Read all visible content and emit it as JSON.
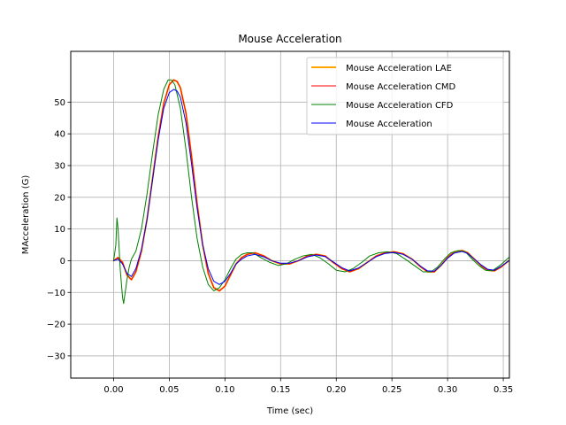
{
  "chart_data": {
    "type": "line",
    "title": "Mouse Acceleration",
    "xlabel": "Time (sec)",
    "ylabel": "MAcceleration (G)",
    "xlim": [
      -0.0385,
      0.3555
    ],
    "ylim": [
      -37,
      66
    ],
    "xticks": [
      0.0,
      0.05,
      0.1,
      0.15,
      0.2,
      0.25,
      0.3,
      0.35
    ],
    "xtick_labels": [
      "0.00",
      "0.05",
      "0.10",
      "0.15",
      "0.20",
      "0.25",
      "0.30",
      "0.35"
    ],
    "yticks": [
      -30,
      -20,
      -10,
      0,
      10,
      20,
      30,
      40,
      50
    ],
    "ytick_labels": [
      "−30",
      "−20",
      "−10",
      "0",
      "10",
      "20",
      "30",
      "40",
      "50"
    ],
    "grid": true,
    "legend_position": "top-right",
    "series": [
      {
        "name": "Mouse Acceleration LAE",
        "color": "#ffa500",
        "width": 2,
        "x": [
          0.0,
          0.004,
          0.008,
          0.012,
          0.016,
          0.02,
          0.025,
          0.03,
          0.035,
          0.04,
          0.045,
          0.05,
          0.054,
          0.057,
          0.06,
          0.065,
          0.07,
          0.075,
          0.08,
          0.085,
          0.09,
          0.095,
          0.1,
          0.105,
          0.11,
          0.115,
          0.12,
          0.127,
          0.135,
          0.142,
          0.15,
          0.158,
          0.166,
          0.174,
          0.182,
          0.19,
          0.197,
          0.205,
          0.212,
          0.22,
          0.228,
          0.236,
          0.244,
          0.252,
          0.26,
          0.268,
          0.276,
          0.282,
          0.288,
          0.294,
          0.3,
          0.306,
          0.313,
          0.318,
          0.324,
          0.33,
          0.336,
          0.342,
          0.348,
          0.355
        ],
        "y": [
          0.0,
          1.0,
          -0.5,
          -4.5,
          -6.0,
          -3.5,
          3.0,
          13.0,
          26.0,
          39.0,
          49.5,
          55.5,
          57.0,
          56.5,
          54.5,
          46.5,
          33.0,
          18.0,
          5.0,
          -4.0,
          -8.5,
          -9.5,
          -8.0,
          -4.5,
          -1.0,
          1.0,
          2.0,
          2.5,
          1.5,
          0.0,
          -1.0,
          -1.0,
          0.0,
          1.5,
          2.0,
          1.5,
          -0.5,
          -2.5,
          -3.5,
          -2.5,
          -0.5,
          1.5,
          2.5,
          2.8,
          2.2,
          0.5,
          -2.0,
          -3.5,
          -3.5,
          -1.5,
          1.0,
          2.8,
          3.2,
          2.5,
          0.5,
          -1.5,
          -3.0,
          -3.2,
          -2.0,
          0.0
        ]
      },
      {
        "name": "Mouse Acceleration CMD",
        "color": "#ff0000",
        "width": 1,
        "x": [
          0.0,
          0.004,
          0.008,
          0.012,
          0.016,
          0.02,
          0.025,
          0.03,
          0.035,
          0.04,
          0.045,
          0.05,
          0.054,
          0.057,
          0.06,
          0.065,
          0.07,
          0.075,
          0.08,
          0.085,
          0.09,
          0.095,
          0.1,
          0.105,
          0.11,
          0.115,
          0.12,
          0.127,
          0.135,
          0.142,
          0.15,
          0.158,
          0.166,
          0.174,
          0.182,
          0.19,
          0.197,
          0.205,
          0.212,
          0.22,
          0.228,
          0.236,
          0.244,
          0.252,
          0.26,
          0.268,
          0.276,
          0.282,
          0.288,
          0.294,
          0.3,
          0.306,
          0.313,
          0.318,
          0.324,
          0.33,
          0.336,
          0.342,
          0.348,
          0.355
        ],
        "y": [
          0.0,
          1.0,
          -0.5,
          -4.5,
          -6.0,
          -3.5,
          3.0,
          13.0,
          26.0,
          39.0,
          49.5,
          55.5,
          57.0,
          56.5,
          54.5,
          46.5,
          33.0,
          18.0,
          5.0,
          -4.0,
          -8.5,
          -9.5,
          -8.0,
          -4.5,
          -1.0,
          1.0,
          2.0,
          2.5,
          1.5,
          0.0,
          -1.0,
          -1.0,
          0.0,
          1.5,
          2.0,
          1.5,
          -0.5,
          -2.5,
          -3.5,
          -2.5,
          -0.5,
          1.5,
          2.5,
          2.8,
          2.2,
          0.5,
          -2.0,
          -3.5,
          -3.5,
          -1.5,
          1.0,
          2.8,
          3.2,
          2.5,
          0.5,
          -1.5,
          -3.0,
          -3.2,
          -2.0,
          0.0
        ]
      },
      {
        "name": "Mouse Acceleration CFD",
        "color": "#008000",
        "width": 1,
        "x": [
          0.0,
          0.002,
          0.003,
          0.004,
          0.006,
          0.008,
          0.009,
          0.01,
          0.012,
          0.014,
          0.016,
          0.02,
          0.025,
          0.03,
          0.035,
          0.04,
          0.045,
          0.049,
          0.052,
          0.055,
          0.06,
          0.065,
          0.07,
          0.075,
          0.08,
          0.085,
          0.09,
          0.095,
          0.1,
          0.105,
          0.11,
          0.115,
          0.12,
          0.125,
          0.132,
          0.14,
          0.148,
          0.155,
          0.163,
          0.17,
          0.178,
          0.185,
          0.193,
          0.2,
          0.208,
          0.215,
          0.223,
          0.23,
          0.238,
          0.246,
          0.254,
          0.262,
          0.27,
          0.278,
          0.285,
          0.291,
          0.297,
          0.303,
          0.31,
          0.316,
          0.322,
          0.328,
          0.334,
          0.34,
          0.347,
          0.355
        ],
        "y": [
          0.0,
          5.0,
          13.5,
          10.0,
          -3.0,
          -11.5,
          -13.5,
          -11.0,
          -6.0,
          -2.0,
          0.5,
          3.0,
          10.0,
          21.0,
          34.0,
          46.0,
          54.0,
          57.0,
          57.0,
          55.5,
          48.0,
          35.0,
          20.0,
          7.0,
          -2.0,
          -7.5,
          -9.5,
          -8.5,
          -6.0,
          -2.5,
          0.5,
          2.0,
          2.5,
          2.5,
          1.0,
          -0.5,
          -1.5,
          -1.0,
          0.5,
          1.5,
          2.0,
          1.0,
          -1.0,
          -3.0,
          -3.5,
          -2.5,
          -0.5,
          1.5,
          2.5,
          2.8,
          2.3,
          0.5,
          -1.5,
          -3.5,
          -3.5,
          -2.0,
          0.5,
          2.5,
          3.2,
          2.8,
          0.5,
          -1.5,
          -3.0,
          -3.2,
          -1.5,
          1.0
        ]
      },
      {
        "name": "Mouse Acceleration",
        "color": "#0000ff",
        "width": 1,
        "x": [
          0.0,
          0.004,
          0.008,
          0.012,
          0.016,
          0.02,
          0.025,
          0.03,
          0.035,
          0.04,
          0.045,
          0.05,
          0.054,
          0.057,
          0.06,
          0.065,
          0.07,
          0.075,
          0.08,
          0.085,
          0.09,
          0.095,
          0.1,
          0.105,
          0.11,
          0.115,
          0.12,
          0.127,
          0.135,
          0.142,
          0.15,
          0.158,
          0.166,
          0.174,
          0.182,
          0.19,
          0.197,
          0.205,
          0.212,
          0.22,
          0.228,
          0.236,
          0.244,
          0.252,
          0.26,
          0.268,
          0.276,
          0.282,
          0.288,
          0.294,
          0.3,
          0.306,
          0.313,
          0.318,
          0.324,
          0.33,
          0.336,
          0.342,
          0.348,
          0.355
        ],
        "y": [
          0.0,
          0.5,
          -1.0,
          -4.0,
          -5.0,
          -2.5,
          3.5,
          13.0,
          25.5,
          38.0,
          48.0,
          53.0,
          54.0,
          53.5,
          51.5,
          43.5,
          30.5,
          16.5,
          5.0,
          -2.5,
          -6.5,
          -7.5,
          -6.5,
          -4.0,
          -1.0,
          0.5,
          1.5,
          2.0,
          1.2,
          0.0,
          -0.8,
          -0.8,
          0.0,
          1.2,
          1.8,
          1.3,
          -0.3,
          -2.2,
          -3.2,
          -2.3,
          -0.5,
          1.3,
          2.3,
          2.6,
          2.0,
          0.5,
          -1.8,
          -3.2,
          -3.3,
          -1.5,
          0.8,
          2.4,
          2.9,
          2.3,
          0.5,
          -1.3,
          -2.7,
          -3.0,
          -1.8,
          0.0
        ]
      }
    ]
  }
}
